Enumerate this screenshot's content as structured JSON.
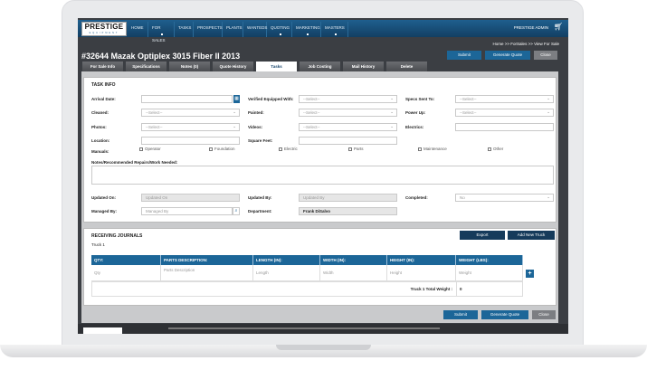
{
  "nav": {
    "logo": "PRESTIGE",
    "logo_sub": "EQUIPMENT",
    "items": [
      {
        "label": "Home",
        "dot": false
      },
      {
        "label": "For Sales",
        "dot": true
      },
      {
        "label": "Tasks",
        "dot": false
      },
      {
        "label": "Prospects",
        "dot": false
      },
      {
        "label": "Plants",
        "dot": false
      },
      {
        "label": "Wanteds",
        "dot": false
      },
      {
        "label": "Quoting",
        "dot": true
      },
      {
        "label": "Marketing",
        "dot": true
      },
      {
        "label": "Masters",
        "dot": true
      }
    ],
    "user": "PRESTIGE ADMIN",
    "cart_icon": "cart-icon"
  },
  "breadcrumb": "Home >> ForSales >> View For Sale",
  "title": "#32644 Mazak Optiplex 3015 Fiber II 2013",
  "actions": {
    "submit": "Submit",
    "generate_quote": "Generate Quote",
    "close": "Close"
  },
  "tabs": [
    "For Sale Info",
    "Specifications",
    "Notes (0)",
    "Quote History",
    "Tasks",
    "Job Costing",
    "Mail History",
    "Delete"
  ],
  "active_tab": "Tasks",
  "task_info": {
    "heading": "TASK INFO",
    "arrival_date": {
      "label": "Arrival Date:",
      "value": ""
    },
    "verified": {
      "label": "Verified Equipped With:",
      "value": "--Select--"
    },
    "specs_sent": {
      "label": "Specs Sent To:",
      "value": "--Select--"
    },
    "cleaned": {
      "label": "Cleaned:",
      "value": "--Select--"
    },
    "painted": {
      "label": "Painted:",
      "value": "--Select--"
    },
    "power_up": {
      "label": "Power Up:",
      "value": "--Select--"
    },
    "photos": {
      "label": "Photos:",
      "value": "--Select--"
    },
    "videos": {
      "label": "Videos:",
      "value": "--Select--"
    },
    "electrics": {
      "label": "Electrics:",
      "value": ""
    },
    "location": {
      "label": "Location:",
      "value": ""
    },
    "square_feet": {
      "label": "Square Feet:",
      "value": ""
    },
    "manuals": {
      "label": "Manuals:",
      "options": [
        "Operator",
        "Foundation",
        "Electric",
        "Parts",
        "Maintenance",
        "Other"
      ]
    },
    "notes_label": "Notes/Recommended Repairs/Work Needed:",
    "updated_on": {
      "label": "Updated On:",
      "placeholder": "Updated On"
    },
    "updated_by": {
      "label": "Updated By:",
      "placeholder": "Updated By"
    },
    "completed": {
      "label": "Completed:",
      "value": "No"
    },
    "managed_by": {
      "label": "Managed By:",
      "placeholder": "Managed By"
    },
    "department": {
      "label": "Department:",
      "value": "Frank DiSalvo"
    }
  },
  "receiving": {
    "heading": "RECEIVING JOURNALS",
    "truck": "Truck 1",
    "export": "Export",
    "add_truck": "Add New Truck",
    "columns": [
      "QTY:",
      "PARTS DESCRIPTION:",
      "LENGTH (IN):",
      "WIDTH (IN):",
      "HEIGHT (IN):",
      "WEIGHT (LBS):"
    ],
    "placeholders": [
      "Qty",
      "Parts Description",
      "Length",
      "Width",
      "Height",
      "Weight"
    ],
    "total_label": "Truck 1 Total Weight :",
    "total_value": "0",
    "add_row": "+"
  },
  "colors": {
    "accent": "#1c6698",
    "nav": "#123f63",
    "background": "#3b3e43"
  }
}
